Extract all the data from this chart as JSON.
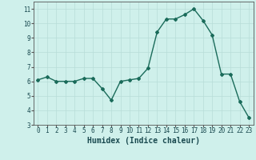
{
  "x": [
    0,
    1,
    2,
    3,
    4,
    5,
    6,
    7,
    8,
    9,
    10,
    11,
    12,
    13,
    14,
    15,
    16,
    17,
    18,
    19,
    20,
    21,
    22,
    23
  ],
  "y": [
    6.1,
    6.3,
    6.0,
    6.0,
    6.0,
    6.2,
    6.2,
    5.5,
    4.7,
    6.0,
    6.1,
    6.2,
    6.9,
    9.4,
    10.3,
    10.3,
    10.6,
    11.0,
    10.2,
    9.2,
    6.5,
    6.5,
    4.6,
    3.5
  ],
  "line_color": "#1a6b5a",
  "marker": "D",
  "marker_size": 2.0,
  "line_width": 1.0,
  "xlabel": "Humidex (Indice chaleur)",
  "xlim": [
    -0.5,
    23.5
  ],
  "ylim": [
    3,
    11.5
  ],
  "yticks": [
    3,
    4,
    5,
    6,
    7,
    8,
    9,
    10,
    11
  ],
  "xticks": [
    0,
    1,
    2,
    3,
    4,
    5,
    6,
    7,
    8,
    9,
    10,
    11,
    12,
    13,
    14,
    15,
    16,
    17,
    18,
    19,
    20,
    21,
    22,
    23
  ],
  "bg_color": "#cff0eb",
  "grid_color": "#b8ddd8",
  "tick_fontsize": 5.5,
  "xlabel_fontsize": 7.0,
  "tick_color": "#1a4a50",
  "spine_color": "#555555"
}
